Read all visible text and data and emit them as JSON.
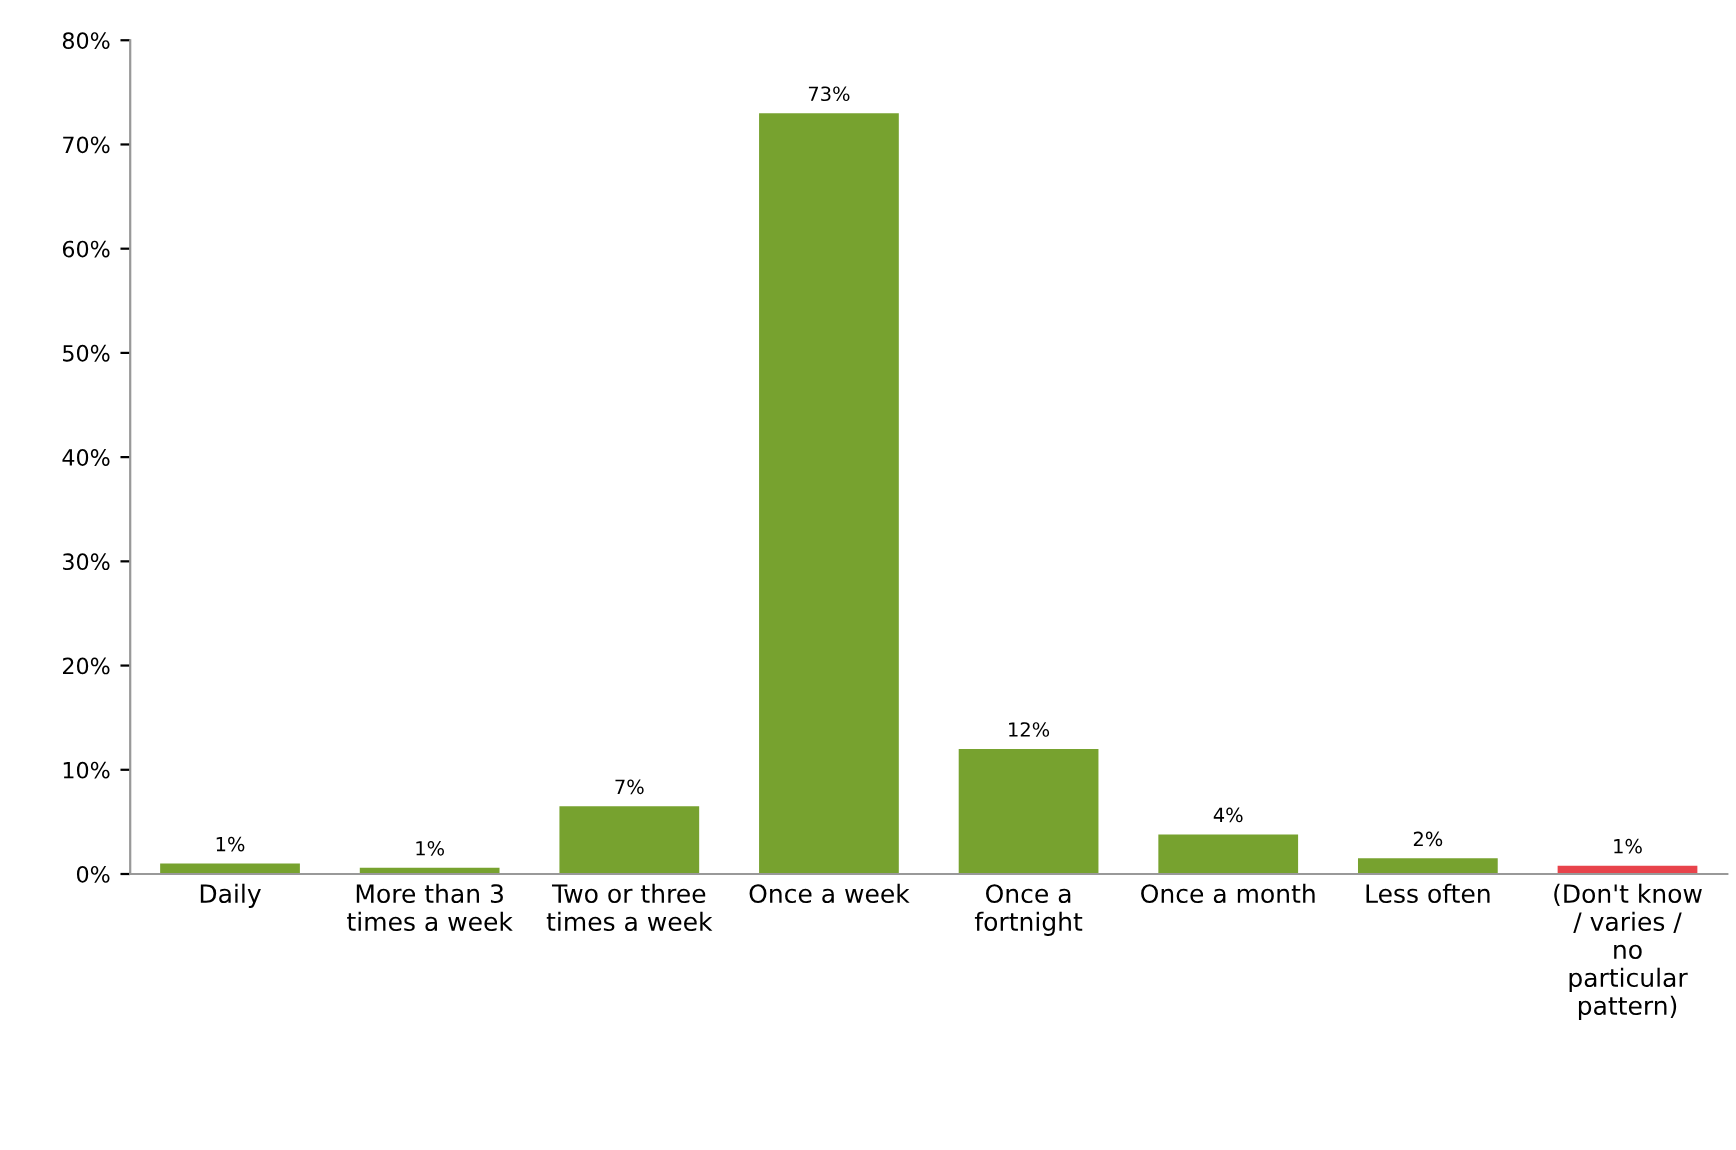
{
  "chart_data": {
    "type": "bar",
    "categories": [
      "Daily",
      "More than 3 times a week",
      "Two or three times a week",
      "Once a week",
      "Once a fortnight",
      "Once a month",
      "Less often",
      "(Don't know / varies / no particular pattern)"
    ],
    "values": [
      1.0,
      0.6,
      6.5,
      73,
      12,
      3.8,
      1.5,
      0.8
    ],
    "colors": [
      "#77a22f",
      "#77a22f",
      "#77a22f",
      "#77a22f",
      "#77a22f",
      "#77a22f",
      "#77a22f",
      "#e8434b"
    ],
    "value_labels": [
      "1%",
      "1%",
      "7%",
      "73%",
      "12%",
      "4%",
      "2%",
      "1%"
    ],
    "ylim": [
      0,
      80
    ],
    "yticks": [
      {
        "value": 0,
        "label": "0%"
      },
      {
        "value": 10,
        "label": "10%"
      },
      {
        "value": 20,
        "label": "20%"
      },
      {
        "value": 30,
        "label": "30%"
      },
      {
        "value": 40,
        "label": "40%"
      },
      {
        "value": 50,
        "label": "50%"
      },
      {
        "value": 60,
        "label": "60%"
      },
      {
        "value": 70,
        "label": "70%"
      },
      {
        "value": 80,
        "label": "80%"
      }
    ],
    "grid": false,
    "legend": false
  }
}
